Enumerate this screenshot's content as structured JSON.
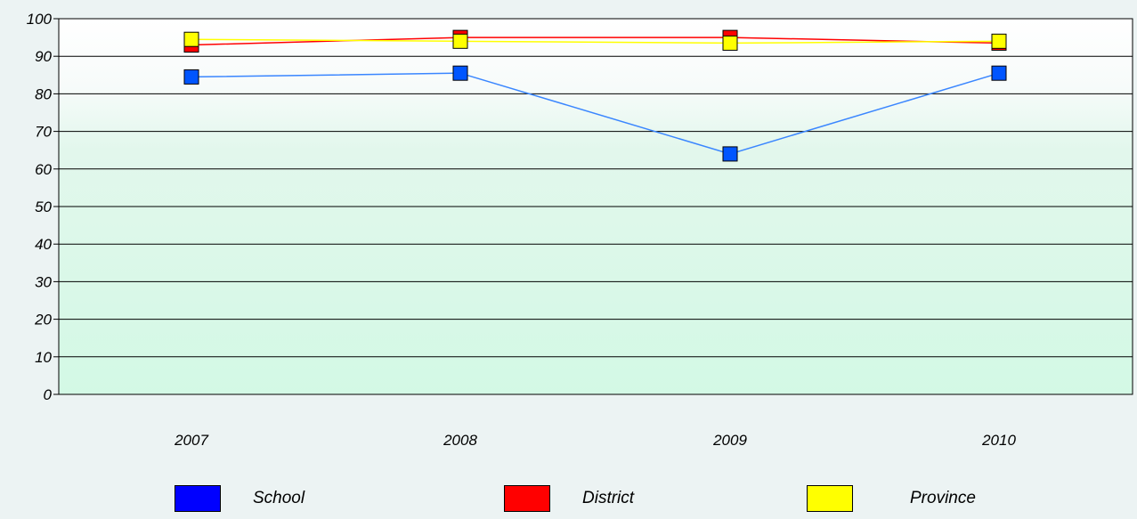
{
  "chart_data": {
    "type": "line",
    "categories": [
      "2007",
      "2008",
      "2009",
      "2010"
    ],
    "series": [
      {
        "name": "School",
        "values": [
          84.5,
          85.5,
          64,
          85.5
        ],
        "color": "#0055ff",
        "line_color": "#3a86ff"
      },
      {
        "name": "District",
        "values": [
          93,
          95,
          95,
          93.5
        ],
        "color": "#ff0000",
        "line_color": "#ff0000"
      },
      {
        "name": "Province",
        "values": [
          94.5,
          94,
          93.5,
          94
        ],
        "color": "#ffff00",
        "line_color": "#ffff00"
      }
    ],
    "y_ticks": [
      "0",
      "10",
      "20",
      "30",
      "40",
      "50",
      "60",
      "70",
      "80",
      "90",
      "100"
    ],
    "ylim": [
      0,
      100
    ],
    "grid": true,
    "legend_position": "bottom"
  }
}
